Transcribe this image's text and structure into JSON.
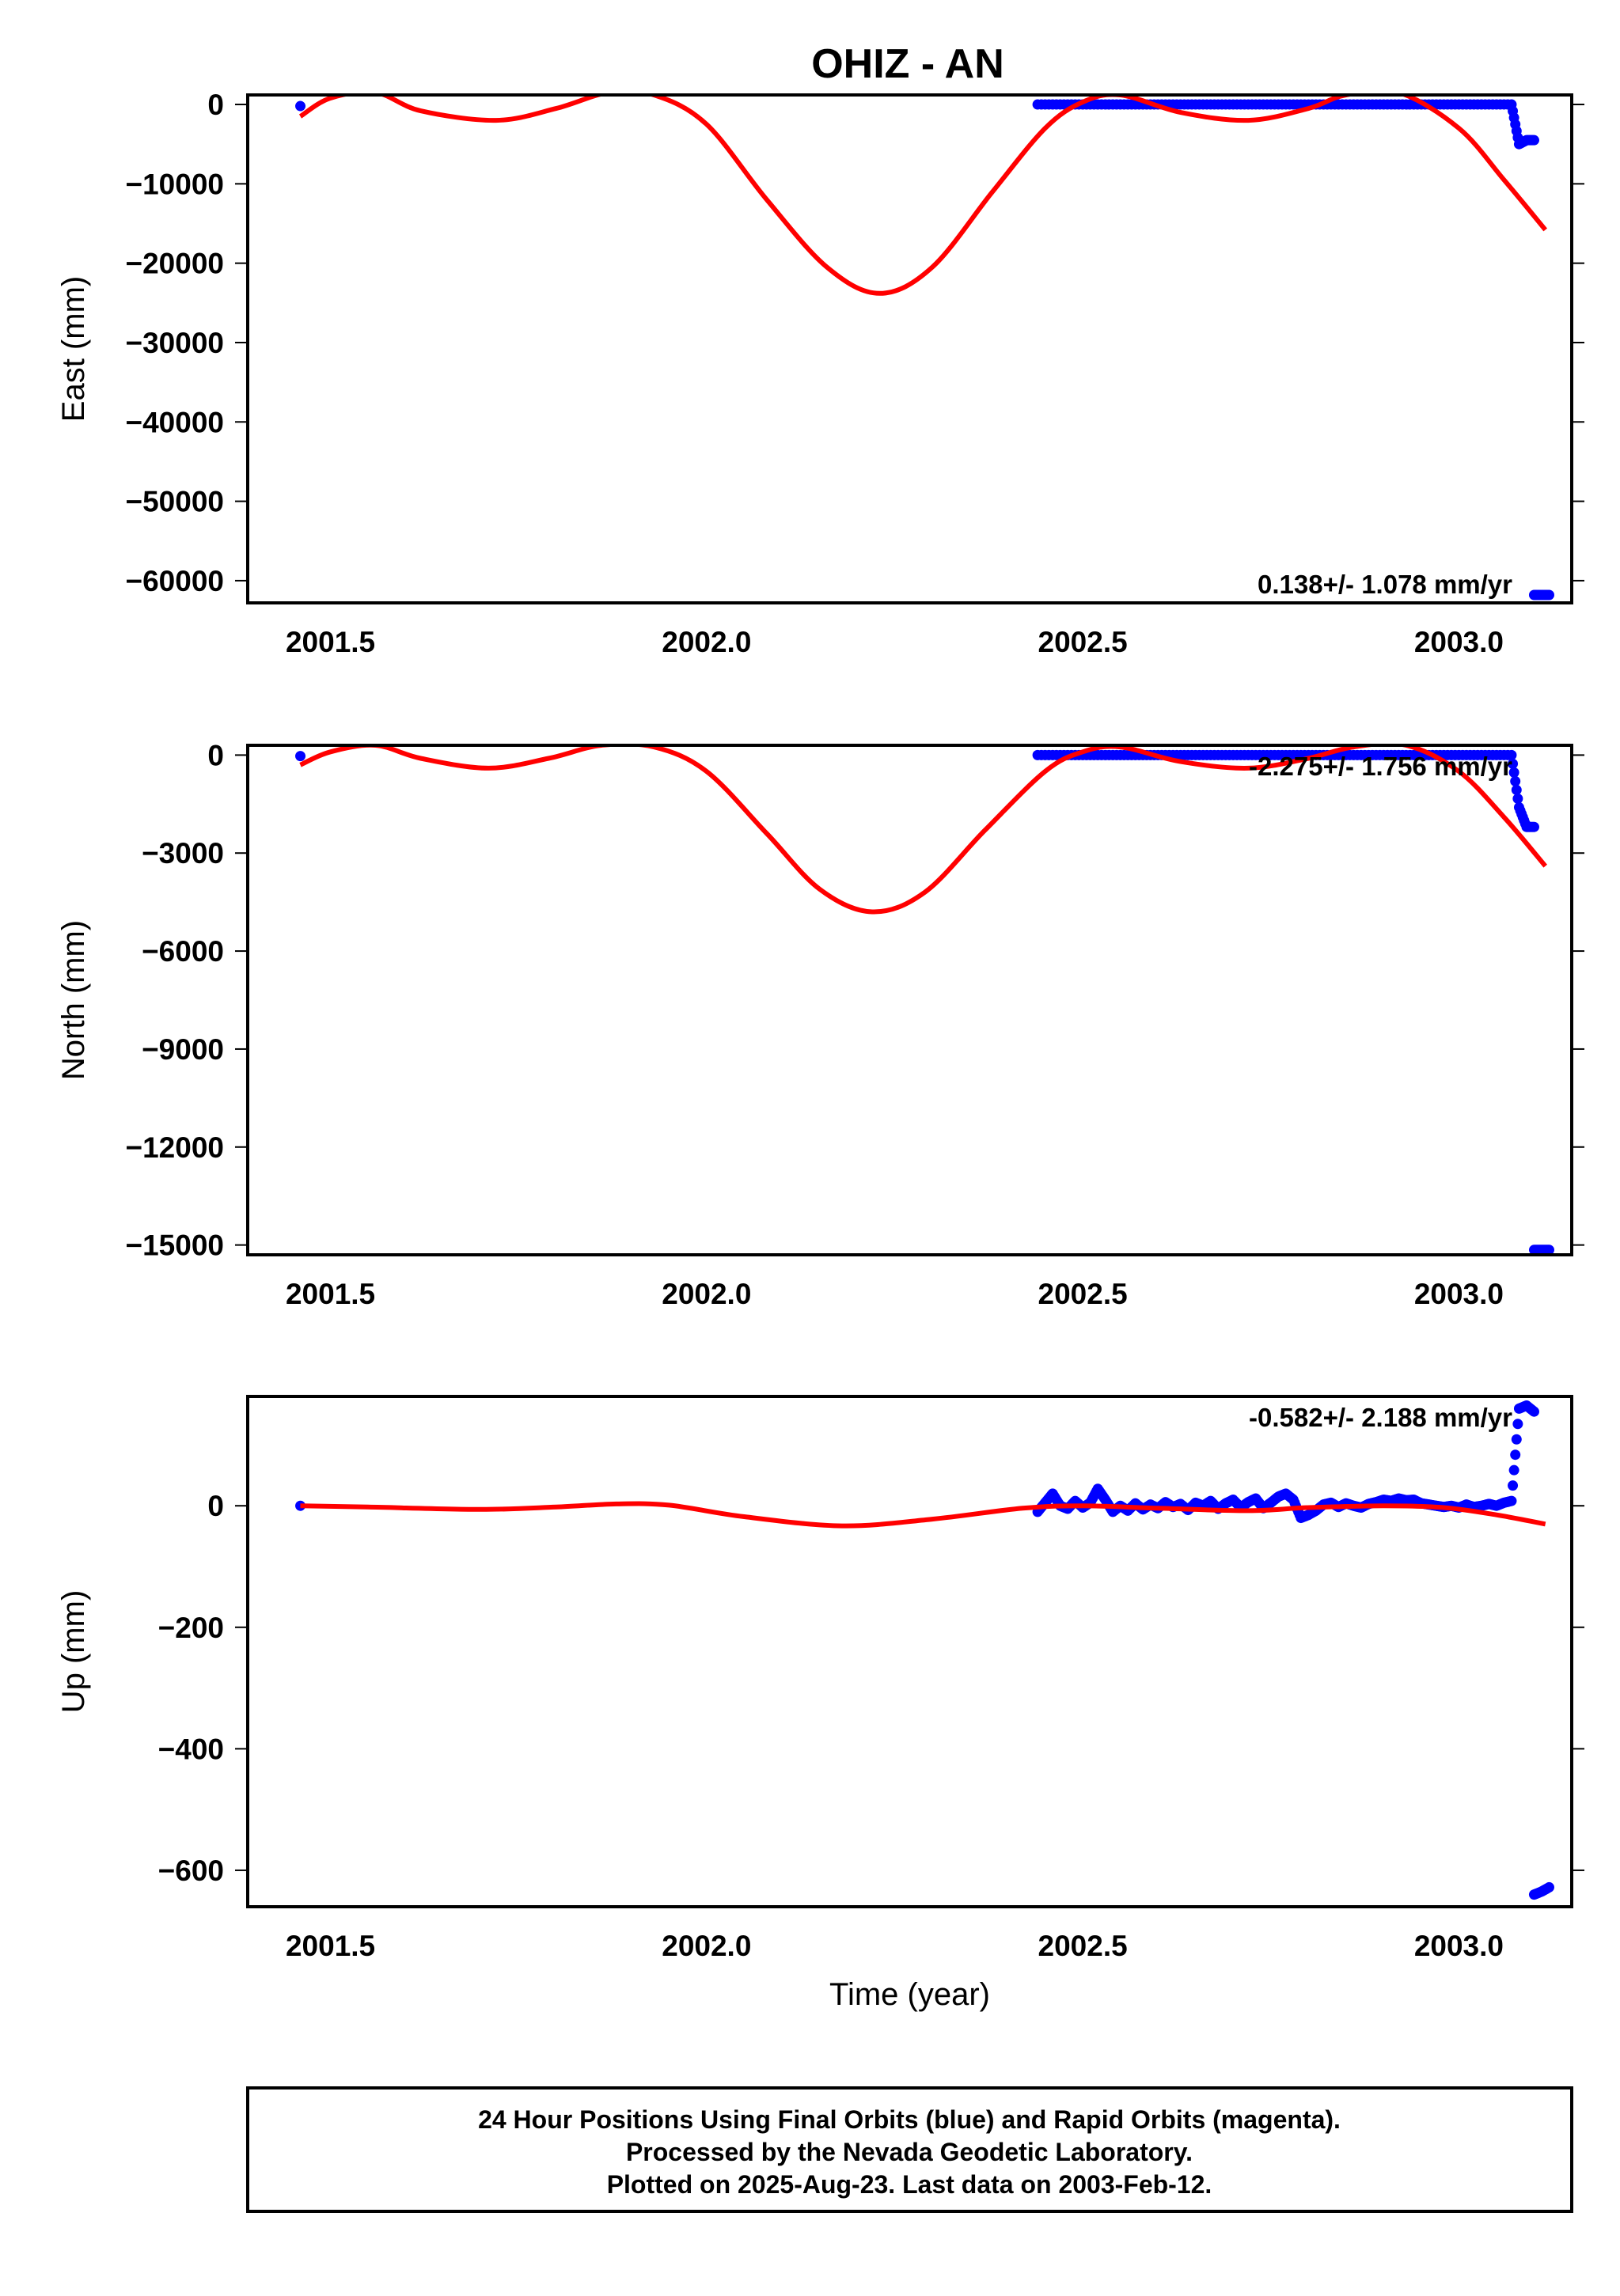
{
  "title": "OHIZ - AN",
  "colors": {
    "final_orbits": "#0000ff",
    "model_fit": "#ff0000",
    "frame": "#000000"
  },
  "chart_data": [
    {
      "type": "scatter",
      "name": "east",
      "ylabel": "East (mm)",
      "xlabel": "",
      "xlim": [
        2001.39,
        2003.15
      ],
      "ylim": [
        -62800,
        1200
      ],
      "xticks": [
        2001.5,
        2002.0,
        2002.5,
        2003.0
      ],
      "xtick_labels": [
        "2001.5",
        "2002.0",
        "2002.5",
        "2003.0"
      ],
      "yticks": [
        0,
        -10000,
        -20000,
        -30000,
        -40000,
        -50000,
        -60000
      ],
      "ytick_labels": [
        "0",
        "−10000",
        "−20000",
        "−30000",
        "−40000",
        "−50000",
        "−60000"
      ],
      "rate_label": "0.138+/- 1.078 mm/yr",
      "points": [
        {
          "x": 2001.46,
          "y": -200
        },
        {
          "x": 2002.44,
          "y": 0
        },
        {
          "x": 2002.47,
          "y": 0
        },
        {
          "x": 2002.5,
          "y": 0
        },
        {
          "x": 2002.53,
          "y": 0
        },
        {
          "x": 2002.56,
          "y": 0
        },
        {
          "x": 2002.59,
          "y": 0
        },
        {
          "x": 2002.62,
          "y": 0
        },
        {
          "x": 2002.65,
          "y": 0
        },
        {
          "x": 2002.68,
          "y": 0
        },
        {
          "x": 2002.71,
          "y": 0
        },
        {
          "x": 2002.74,
          "y": 0
        },
        {
          "x": 2002.77,
          "y": 0
        },
        {
          "x": 2002.8,
          "y": 0
        },
        {
          "x": 2002.83,
          "y": 0
        },
        {
          "x": 2002.86,
          "y": 0
        },
        {
          "x": 2002.89,
          "y": 0
        },
        {
          "x": 2002.92,
          "y": 0
        },
        {
          "x": 2002.95,
          "y": 0
        },
        {
          "x": 2002.98,
          "y": 0
        },
        {
          "x": 2003.01,
          "y": 0
        },
        {
          "x": 2003.04,
          "y": 0
        },
        {
          "x": 2003.07,
          "y": 0
        },
        {
          "x": 2003.08,
          "y": -5000
        },
        {
          "x": 2003.09,
          "y": -4500
        },
        {
          "x": 2003.1,
          "y": -4500
        },
        {
          "x": 2003.1,
          "y": -61800
        },
        {
          "x": 2003.11,
          "y": -61800
        },
        {
          "x": 2003.12,
          "y": -61800
        }
      ],
      "model": [
        {
          "x": 2001.46,
          "y": -1500
        },
        {
          "x": 2001.5,
          "y": 800
        },
        {
          "x": 2001.56,
          "y": 1500
        },
        {
          "x": 2001.62,
          "y": -800
        },
        {
          "x": 2001.72,
          "y": -2000
        },
        {
          "x": 2001.8,
          "y": -500
        },
        {
          "x": 2001.87,
          "y": 1500
        },
        {
          "x": 2001.93,
          "y": 1200
        },
        {
          "x": 2002.0,
          "y": -2500
        },
        {
          "x": 2002.08,
          "y": -12000
        },
        {
          "x": 2002.16,
          "y": -20500
        },
        {
          "x": 2002.23,
          "y": -23800
        },
        {
          "x": 2002.3,
          "y": -20500
        },
        {
          "x": 2002.38,
          "y": -11000
        },
        {
          "x": 2002.45,
          "y": -3000
        },
        {
          "x": 2002.5,
          "y": 300
        },
        {
          "x": 2002.55,
          "y": 1200
        },
        {
          "x": 2002.63,
          "y": -1000
        },
        {
          "x": 2002.72,
          "y": -2000
        },
        {
          "x": 2002.8,
          "y": -500
        },
        {
          "x": 2002.85,
          "y": 1200
        },
        {
          "x": 2002.92,
          "y": 1500
        },
        {
          "x": 2003.0,
          "y": -3000
        },
        {
          "x": 2003.06,
          "y": -9500
        },
        {
          "x": 2003.115,
          "y": -15800
        }
      ]
    },
    {
      "type": "scatter",
      "name": "north",
      "ylabel": "North (mm)",
      "xlabel": "",
      "xlim": [
        2001.39,
        2003.15
      ],
      "ylim": [
        -15300,
        300
      ],
      "xticks": [
        2001.5,
        2002.0,
        2002.5,
        2003.0
      ],
      "xtick_labels": [
        "2001.5",
        "2002.0",
        "2002.5",
        "2003.0"
      ],
      "yticks": [
        0,
        -3000,
        -6000,
        -9000,
        -12000,
        -15000
      ],
      "ytick_labels": [
        "0",
        "−3000",
        "−6000",
        "−9000",
        "−12000",
        "−15000"
      ],
      "rate_label": "-2.275+/- 1.756 mm/yr",
      "points": [
        {
          "x": 2001.46,
          "y": -30
        },
        {
          "x": 2002.44,
          "y": 0
        },
        {
          "x": 2002.47,
          "y": 0
        },
        {
          "x": 2002.5,
          "y": 0
        },
        {
          "x": 2002.53,
          "y": 0
        },
        {
          "x": 2002.56,
          "y": 0
        },
        {
          "x": 2002.59,
          "y": 0
        },
        {
          "x": 2002.62,
          "y": 0
        },
        {
          "x": 2002.65,
          "y": 0
        },
        {
          "x": 2002.68,
          "y": 0
        },
        {
          "x": 2002.71,
          "y": 0
        },
        {
          "x": 2002.74,
          "y": 0
        },
        {
          "x": 2002.77,
          "y": 0
        },
        {
          "x": 2002.8,
          "y": 0
        },
        {
          "x": 2002.83,
          "y": 0
        },
        {
          "x": 2002.86,
          "y": 0
        },
        {
          "x": 2002.89,
          "y": 0
        },
        {
          "x": 2002.92,
          "y": 0
        },
        {
          "x": 2002.95,
          "y": 0
        },
        {
          "x": 2002.98,
          "y": 0
        },
        {
          "x": 2003.01,
          "y": 0
        },
        {
          "x": 2003.04,
          "y": 0
        },
        {
          "x": 2003.07,
          "y": 0
        },
        {
          "x": 2003.08,
          "y": -1600
        },
        {
          "x": 2003.09,
          "y": -2200
        },
        {
          "x": 2003.1,
          "y": -2200
        },
        {
          "x": 2003.1,
          "y": -15150
        },
        {
          "x": 2003.11,
          "y": -15150
        },
        {
          "x": 2003.12,
          "y": -15150
        }
      ],
      "model": [
        {
          "x": 2001.46,
          "y": -300
        },
        {
          "x": 2001.5,
          "y": 100
        },
        {
          "x": 2001.56,
          "y": 300
        },
        {
          "x": 2001.62,
          "y": -100
        },
        {
          "x": 2001.71,
          "y": -400
        },
        {
          "x": 2001.79,
          "y": -100
        },
        {
          "x": 2001.86,
          "y": 300
        },
        {
          "x": 2001.93,
          "y": 250
        },
        {
          "x": 2002.0,
          "y": -500
        },
        {
          "x": 2002.08,
          "y": -2400
        },
        {
          "x": 2002.15,
          "y": -4100
        },
        {
          "x": 2002.22,
          "y": -4800
        },
        {
          "x": 2002.29,
          "y": -4200
        },
        {
          "x": 2002.37,
          "y": -2300
        },
        {
          "x": 2002.45,
          "y": -500
        },
        {
          "x": 2002.5,
          "y": 100
        },
        {
          "x": 2002.55,
          "y": 250
        },
        {
          "x": 2002.63,
          "y": -200
        },
        {
          "x": 2002.72,
          "y": -400
        },
        {
          "x": 2002.8,
          "y": -100
        },
        {
          "x": 2002.86,
          "y": 250
        },
        {
          "x": 2002.93,
          "y": 300
        },
        {
          "x": 2003.0,
          "y": -500
        },
        {
          "x": 2003.06,
          "y": -1900
        },
        {
          "x": 2003.115,
          "y": -3400
        }
      ]
    },
    {
      "type": "scatter",
      "name": "up",
      "ylabel": "Up (mm)",
      "xlabel": "Time (year)",
      "xlim": [
        2001.39,
        2003.15
      ],
      "ylim": [
        -660,
        180
      ],
      "xticks": [
        2001.5,
        2002.0,
        2002.5,
        2003.0
      ],
      "xtick_labels": [
        "2001.5",
        "2002.0",
        "2002.5",
        "2003.0"
      ],
      "yticks": [
        0,
        -200,
        -400,
        -600
      ],
      "ytick_labels": [
        "0",
        "−200",
        "−400",
        "−600"
      ],
      "rate_label": "-0.582+/- 2.188 mm/yr",
      "points": [
        {
          "x": 2001.46,
          "y": 0
        },
        {
          "x": 2002.44,
          "y": -10
        },
        {
          "x": 2002.45,
          "y": 5
        },
        {
          "x": 2002.46,
          "y": 20
        },
        {
          "x": 2002.47,
          "y": 0
        },
        {
          "x": 2002.48,
          "y": -5
        },
        {
          "x": 2002.49,
          "y": 8
        },
        {
          "x": 2002.5,
          "y": -3
        },
        {
          "x": 2002.51,
          "y": 5
        },
        {
          "x": 2002.52,
          "y": 28
        },
        {
          "x": 2002.53,
          "y": 10
        },
        {
          "x": 2002.54,
          "y": -10
        },
        {
          "x": 2002.55,
          "y": 0
        },
        {
          "x": 2002.56,
          "y": -8
        },
        {
          "x": 2002.57,
          "y": 4
        },
        {
          "x": 2002.58,
          "y": -6
        },
        {
          "x": 2002.59,
          "y": 2
        },
        {
          "x": 2002.6,
          "y": -4
        },
        {
          "x": 2002.61,
          "y": 6
        },
        {
          "x": 2002.62,
          "y": -2
        },
        {
          "x": 2002.63,
          "y": 3
        },
        {
          "x": 2002.64,
          "y": -7
        },
        {
          "x": 2002.65,
          "y": 5
        },
        {
          "x": 2002.66,
          "y": 0
        },
        {
          "x": 2002.67,
          "y": 8
        },
        {
          "x": 2002.68,
          "y": -5
        },
        {
          "x": 2002.69,
          "y": 4
        },
        {
          "x": 2002.7,
          "y": 10
        },
        {
          "x": 2002.71,
          "y": -3
        },
        {
          "x": 2002.72,
          "y": 6
        },
        {
          "x": 2002.73,
          "y": 12
        },
        {
          "x": 2002.74,
          "y": -4
        },
        {
          "x": 2002.75,
          "y": 5
        },
        {
          "x": 2002.76,
          "y": 15
        },
        {
          "x": 2002.77,
          "y": 20
        },
        {
          "x": 2002.78,
          "y": 10
        },
        {
          "x": 2002.79,
          "y": -20
        },
        {
          "x": 2002.8,
          "y": -15
        },
        {
          "x": 2002.81,
          "y": -8
        },
        {
          "x": 2002.82,
          "y": 2
        },
        {
          "x": 2002.83,
          "y": 5
        },
        {
          "x": 2002.84,
          "y": -2
        },
        {
          "x": 2002.85,
          "y": 4
        },
        {
          "x": 2002.86,
          "y": 0
        },
        {
          "x": 2002.87,
          "y": -3
        },
        {
          "x": 2002.88,
          "y": 3
        },
        {
          "x": 2002.89,
          "y": 6
        },
        {
          "x": 2002.9,
          "y": 10
        },
        {
          "x": 2002.91,
          "y": 8
        },
        {
          "x": 2002.92,
          "y": 12
        },
        {
          "x": 2002.93,
          "y": 9
        },
        {
          "x": 2002.94,
          "y": 10
        },
        {
          "x": 2002.95,
          "y": 4
        },
        {
          "x": 2002.96,
          "y": 2
        },
        {
          "x": 2002.97,
          "y": 0
        },
        {
          "x": 2002.98,
          "y": -2
        },
        {
          "x": 2002.99,
          "y": 0
        },
        {
          "x": 2003.0,
          "y": -3
        },
        {
          "x": 2003.01,
          "y": 2
        },
        {
          "x": 2003.02,
          "y": -2
        },
        {
          "x": 2003.03,
          "y": 0
        },
        {
          "x": 2003.04,
          "y": 3
        },
        {
          "x": 2003.05,
          "y": 0
        },
        {
          "x": 2003.06,
          "y": 5
        },
        {
          "x": 2003.07,
          "y": 8
        },
        {
          "x": 2003.08,
          "y": 160
        },
        {
          "x": 2003.09,
          "y": 165
        },
        {
          "x": 2003.1,
          "y": 155
        },
        {
          "x": 2003.1,
          "y": -640
        },
        {
          "x": 2003.11,
          "y": -635
        },
        {
          "x": 2003.12,
          "y": -628
        }
      ],
      "model": [
        {
          "x": 2001.46,
          "y": 0
        },
        {
          "x": 2001.55,
          "y": -2
        },
        {
          "x": 2001.7,
          "y": -6
        },
        {
          "x": 2001.8,
          "y": -2
        },
        {
          "x": 2001.88,
          "y": 3
        },
        {
          "x": 2001.95,
          "y": 1
        },
        {
          "x": 2002.05,
          "y": -18
        },
        {
          "x": 2002.18,
          "y": -33
        },
        {
          "x": 2002.3,
          "y": -22
        },
        {
          "x": 2002.42,
          "y": -4
        },
        {
          "x": 2002.5,
          "y": 0
        },
        {
          "x": 2002.6,
          "y": -4
        },
        {
          "x": 2002.72,
          "y": -8
        },
        {
          "x": 2002.8,
          "y": -3
        },
        {
          "x": 2002.9,
          "y": 0
        },
        {
          "x": 2002.98,
          "y": -3
        },
        {
          "x": 2003.05,
          "y": -15
        },
        {
          "x": 2003.115,
          "y": -30
        }
      ]
    }
  ],
  "footer": {
    "line1": "24 Hour Positions Using Final Orbits (blue) and Rapid Orbits (magenta).",
    "line2": "Processed by the Nevada Geodetic Laboratory.",
    "line3": "Plotted on 2025-Aug-23. Last data on 2003-Feb-12."
  }
}
